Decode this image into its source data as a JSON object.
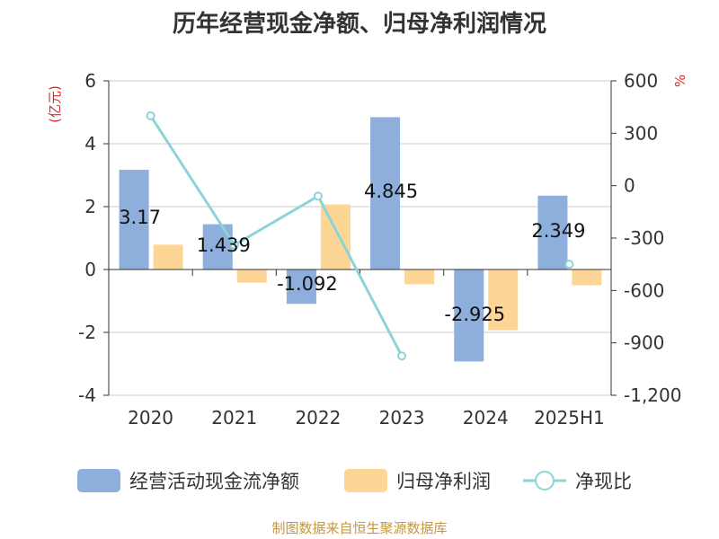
{
  "title": "历年经营现金净额、归母净利润情况",
  "source": "制图数据来自恒生聚源数据库",
  "chart_data": {
    "type": "bar",
    "categories": [
      "2020",
      "2021",
      "2022",
      "2023",
      "2024",
      "2025H1"
    ],
    "series": [
      {
        "name": "经营活动现金流净额",
        "kind": "bar",
        "axis": "left",
        "color": "#8eaedc",
        "values": [
          3.17,
          1.439,
          -1.092,
          4.845,
          -2.925,
          2.349
        ],
        "labels": [
          "3.17",
          "1.439",
          "-1.092",
          "4.845",
          "-2.925",
          "2.349"
        ]
      },
      {
        "name": "归母净利润",
        "kind": "bar",
        "axis": "left",
        "color": "#fdd595",
        "values": [
          0.79,
          -0.42,
          2.07,
          -0.47,
          -1.93,
          -0.5
        ]
      },
      {
        "name": "净现比",
        "kind": "line",
        "axis": "right",
        "color": "#8dd4d8",
        "values": [
          400,
          -340,
          -60,
          -975,
          null,
          -450
        ]
      }
    ],
    "y_left": {
      "label": "(亿元)",
      "ylim": [
        -4,
        6
      ],
      "ticks": [
        6,
        4,
        2,
        0,
        -2,
        -4
      ]
    },
    "y_right": {
      "label": "%",
      "ylim": [
        -1200,
        600
      ],
      "ticks": [
        600,
        300,
        0,
        -300,
        -600,
        -900,
        -1200
      ]
    },
    "legend_position": "bottom",
    "grid": true
  }
}
